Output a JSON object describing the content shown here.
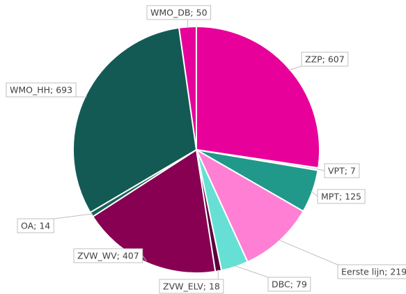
{
  "chart_data": {
    "type": "pie",
    "categories": [
      "ZZP",
      "VPT",
      "MPT",
      "Eerste lijn",
      "DBC",
      "ZVW_ELV",
      "ZVW_WV",
      "OA",
      "WMO_HH",
      "WMO_DB"
    ],
    "values": [
      607,
      7,
      125,
      219,
      79,
      18,
      407,
      14,
      693,
      50
    ],
    "value_labels": [
      "ZZP; 607",
      "VPT; 7",
      "MPT; 125",
      "Eerste lijn; 219",
      "DBC; 79",
      "ZVW_ELV; 18",
      "ZVW_WV; 407",
      "OA; 14",
      "WMO_HH; 693",
      "WMO_DB; 50"
    ],
    "colors": [
      "#e8009a",
      "#dcdcdc",
      "#20998a",
      "#ff7fd4",
      "#66e0d4",
      "#5c003f",
      "#870052",
      "#1b6157",
      "#135a55",
      "#e8009a"
    ]
  }
}
